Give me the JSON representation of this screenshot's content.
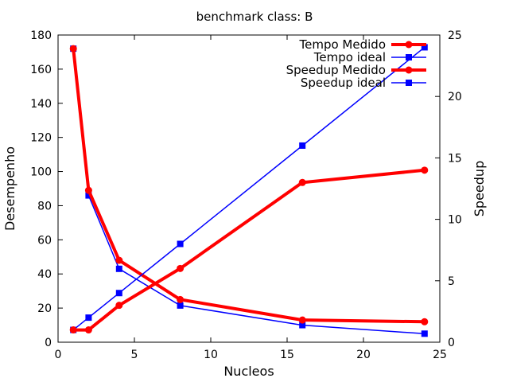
{
  "chart_data": {
    "type": "line",
    "title": "benchmark class: B",
    "xlabel": "Nucleos",
    "ylabel": "Desempenho",
    "y2label": "Speedup",
    "xlim": [
      0,
      25
    ],
    "ylim": [
      0,
      180
    ],
    "y2lim": [
      0,
      25
    ],
    "xticks": [
      0,
      5,
      10,
      15,
      20,
      25
    ],
    "yticks": [
      0,
      20,
      40,
      60,
      80,
      100,
      120,
      140,
      160,
      180
    ],
    "y2ticks": [
      0,
      5,
      10,
      15,
      20,
      25
    ],
    "grid": false,
    "legend_position": "top-right",
    "series": [
      {
        "name": "Tempo Medido",
        "axis": "left",
        "color": "#ff0000",
        "style": "thick",
        "marker": "circle",
        "x": [
          1,
          2,
          4,
          8,
          16,
          24
        ],
        "values": [
          172,
          89,
          48,
          25,
          13,
          12
        ]
      },
      {
        "name": "Tempo ideal",
        "axis": "left",
        "color": "#0000ff",
        "style": "thin",
        "marker": "square",
        "x": [
          1,
          2,
          4,
          8,
          16,
          24
        ],
        "values": [
          172,
          86,
          43,
          21.5,
          10,
          5
        ]
      },
      {
        "name": "Speedup Medido",
        "axis": "right",
        "color": "#ff0000",
        "style": "thick",
        "marker": "circle",
        "x": [
          1,
          2,
          4,
          8,
          16,
          24
        ],
        "values": [
          1,
          1,
          3,
          6,
          13,
          14
        ]
      },
      {
        "name": "Speedup ideal",
        "axis": "right",
        "color": "#0000ff",
        "style": "thin",
        "marker": "square",
        "x": [
          1,
          2,
          4,
          8,
          16,
          24
        ],
        "values": [
          1,
          2,
          4,
          8,
          16,
          24
        ]
      }
    ]
  }
}
